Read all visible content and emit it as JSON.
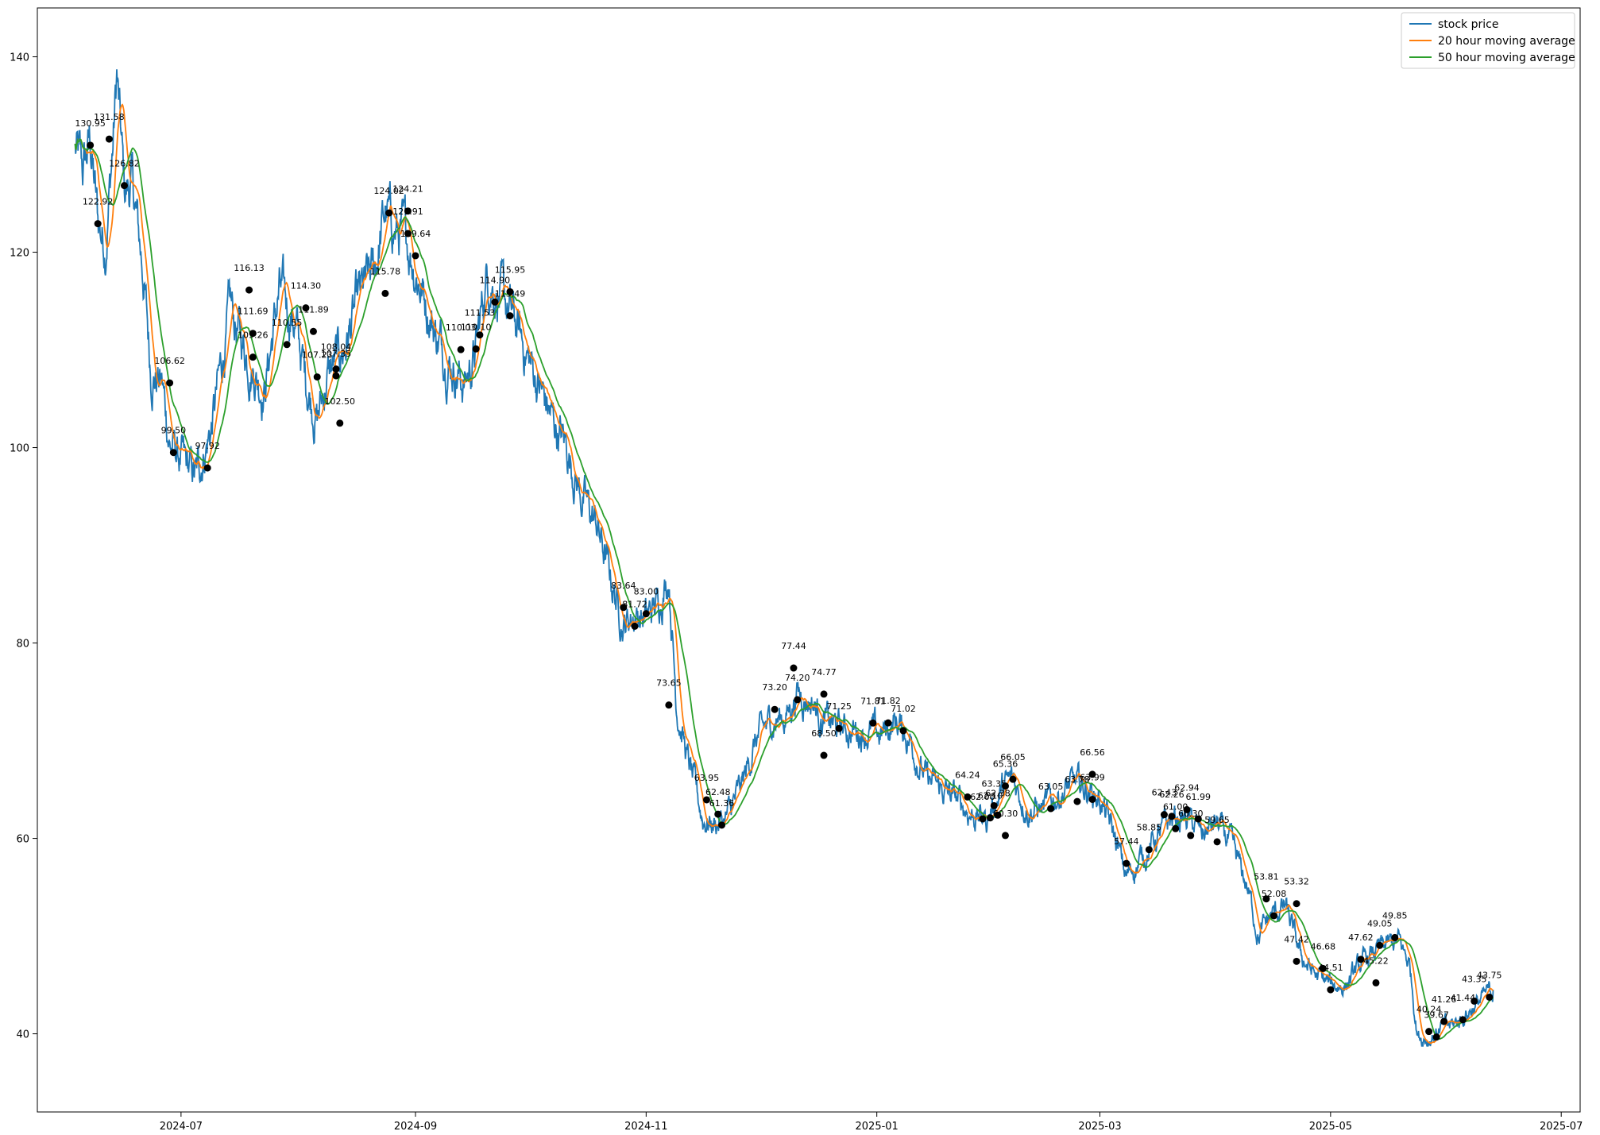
{
  "chart_data": {
    "type": "line",
    "title": "",
    "xlabel": "",
    "ylabel": "",
    "x_ticks": [
      "2024-07",
      "2024-09",
      "2024-11",
      "2025-01",
      "2025-03",
      "2025-05",
      "2025-07"
    ],
    "y_ticks": [
      40,
      60,
      80,
      100,
      120,
      140
    ],
    "xlim": [
      "2024-05-24",
      "2025-07-06"
    ],
    "ylim": [
      32,
      145
    ],
    "grid": false,
    "legend": "top-right",
    "colors": {
      "stock": "#1f77b4",
      "ma20": "#ff7f0e",
      "ma50": "#2ca02c",
      "markers": "#000000"
    },
    "series": [
      {
        "name": "stock price",
        "anchors": [
          [
            "2024-06-03",
            130.5
          ],
          [
            "2024-06-05",
            128.0
          ],
          [
            "2024-06-07",
            131.5
          ],
          [
            "2024-06-09",
            123.0
          ],
          [
            "2024-06-11",
            121.0
          ],
          [
            "2024-06-13",
            131.0
          ],
          [
            "2024-06-14",
            138.0
          ],
          [
            "2024-06-16",
            126.0
          ],
          [
            "2024-06-18",
            127.0
          ],
          [
            "2024-06-21",
            118.0
          ],
          [
            "2024-06-23",
            108.0
          ],
          [
            "2024-06-26",
            106.5
          ],
          [
            "2024-06-28",
            100.5
          ],
          [
            "2024-07-02",
            98.0
          ],
          [
            "2024-07-05",
            97.0
          ],
          [
            "2024-07-09",
            102.0
          ],
          [
            "2024-07-14",
            114.0
          ],
          [
            "2024-07-17",
            111.0
          ],
          [
            "2024-07-19",
            109.0
          ],
          [
            "2024-07-23",
            106.0
          ],
          [
            "2024-07-27",
            116.0
          ],
          [
            "2024-07-31",
            113.0
          ],
          [
            "2024-08-03",
            107.0
          ],
          [
            "2024-08-06",
            103.0
          ],
          [
            "2024-08-09",
            107.5
          ],
          [
            "2024-08-13",
            110.0
          ],
          [
            "2024-08-17",
            115.0
          ],
          [
            "2024-08-21",
            118.0
          ],
          [
            "2024-08-24",
            124.0
          ],
          [
            "2024-08-27",
            122.0
          ],
          [
            "2024-08-30",
            121.0
          ],
          [
            "2024-09-03",
            116.0
          ],
          [
            "2024-09-07",
            111.0
          ],
          [
            "2024-09-10",
            109.0
          ],
          [
            "2024-09-14",
            106.5
          ],
          [
            "2024-09-17",
            110.0
          ],
          [
            "2024-09-20",
            118.0
          ],
          [
            "2024-09-24",
            115.0
          ],
          [
            "2024-09-27",
            113.0
          ],
          [
            "2024-10-02",
            108.0
          ],
          [
            "2024-10-07",
            103.0
          ],
          [
            "2024-10-11",
            100.0
          ],
          [
            "2024-10-15",
            95.0
          ],
          [
            "2024-10-19",
            92.0
          ],
          [
            "2024-10-23",
            86.0
          ],
          [
            "2024-10-26",
            82.0
          ],
          [
            "2024-10-29",
            83.0
          ],
          [
            "2024-11-01",
            82.5
          ],
          [
            "2024-11-04",
            84.0
          ],
          [
            "2024-11-07",
            87.0
          ],
          [
            "2024-11-09",
            74.0
          ],
          [
            "2024-11-12",
            68.0
          ],
          [
            "2024-11-16",
            62.0
          ],
          [
            "2024-11-19",
            61.5
          ],
          [
            "2024-11-22",
            62.0
          ],
          [
            "2024-11-26",
            65.0
          ],
          [
            "2024-11-30",
            70.0
          ],
          [
            "2024-12-04",
            72.0
          ],
          [
            "2024-12-08",
            72.5
          ],
          [
            "2024-12-11",
            75.0
          ],
          [
            "2024-12-15",
            74.0
          ],
          [
            "2024-12-18",
            72.0
          ],
          [
            "2024-12-21",
            71.5
          ],
          [
            "2024-12-25",
            71.0
          ],
          [
            "2024-12-29",
            71.0
          ],
          [
            "2025-01-02",
            70.5
          ],
          [
            "2025-01-06",
            72.0
          ],
          [
            "2025-01-10",
            70.0
          ],
          [
            "2025-01-14",
            66.0
          ],
          [
            "2025-01-18",
            65.0
          ],
          [
            "2025-01-22",
            64.0
          ],
          [
            "2025-01-26",
            62.5
          ],
          [
            "2025-01-30",
            62.0
          ],
          [
            "2025-02-03",
            65.0
          ],
          [
            "2025-02-06",
            66.0
          ],
          [
            "2025-02-10",
            63.0
          ],
          [
            "2025-02-14",
            63.0
          ],
          [
            "2025-02-18",
            64.5
          ],
          [
            "2025-02-22",
            65.5
          ],
          [
            "2025-02-26",
            65.0
          ],
          [
            "2025-03-01",
            64.0
          ],
          [
            "2025-03-05",
            60.0
          ],
          [
            "2025-03-08",
            56.0
          ],
          [
            "2025-03-12",
            58.0
          ],
          [
            "2025-03-16",
            60.0
          ],
          [
            "2025-03-20",
            62.0
          ],
          [
            "2025-03-24",
            62.0
          ],
          [
            "2025-03-28",
            60.5
          ],
          [
            "2025-04-01",
            61.5
          ],
          [
            "2025-04-05",
            59.0
          ],
          [
            "2025-04-09",
            55.0
          ],
          [
            "2025-04-12",
            50.0
          ],
          [
            "2025-04-15",
            52.0
          ],
          [
            "2025-04-19",
            53.0
          ],
          [
            "2025-04-23",
            48.0
          ],
          [
            "2025-04-27",
            46.0
          ],
          [
            "2025-05-01",
            45.0
          ],
          [
            "2025-05-05",
            45.0
          ],
          [
            "2025-05-09",
            47.0
          ],
          [
            "2025-05-13",
            48.5
          ],
          [
            "2025-05-16",
            49.0
          ],
          [
            "2025-05-19",
            49.5
          ],
          [
            "2025-05-22",
            47.0
          ],
          [
            "2025-05-24",
            40.0
          ],
          [
            "2025-05-27",
            39.5
          ],
          [
            "2025-05-30",
            40.5
          ],
          [
            "2025-06-03",
            41.0
          ],
          [
            "2025-06-07",
            42.5
          ],
          [
            "2025-06-10",
            43.5
          ],
          [
            "2025-06-13",
            44.5
          ]
        ]
      },
      {
        "name": "20 hour moving average",
        "window": 3
      },
      {
        "name": "50 hour moving average",
        "window": 7
      }
    ],
    "annotations": [
      {
        "x": "2024-06-07",
        "y": 130.95,
        "label": "130.95"
      },
      {
        "x": "2024-06-09",
        "y": 122.92,
        "label": "122.92"
      },
      {
        "x": "2024-06-12",
        "y": 131.58,
        "label": "131.58"
      },
      {
        "x": "2024-06-16",
        "y": 126.82,
        "label": "126.82"
      },
      {
        "x": "2024-06-28",
        "y": 106.62,
        "label": "106.62"
      },
      {
        "x": "2024-06-29",
        "y": 99.5,
        "label": "99.50"
      },
      {
        "x": "2024-07-08",
        "y": 97.92,
        "label": "97.92"
      },
      {
        "x": "2024-07-19",
        "y": 116.13,
        "label": "116.13"
      },
      {
        "x": "2024-07-20",
        "y": 111.69,
        "label": "111.69"
      },
      {
        "x": "2024-07-20",
        "y": 109.26,
        "label": "109.26"
      },
      {
        "x": "2024-07-29",
        "y": 110.55,
        "label": "110.55"
      },
      {
        "x": "2024-08-03",
        "y": 114.3,
        "label": "114.30"
      },
      {
        "x": "2024-08-05",
        "y": 111.89,
        "label": "111.89"
      },
      {
        "x": "2024-08-06",
        "y": 107.23,
        "label": "107.23"
      },
      {
        "x": "2024-08-11",
        "y": 108.04,
        "label": "108.04"
      },
      {
        "x": "2024-08-11",
        "y": 107.35,
        "label": "107.35"
      },
      {
        "x": "2024-08-12",
        "y": 102.5,
        "label": "102.50"
      },
      {
        "x": "2024-08-24",
        "y": 115.78,
        "label": "115.78"
      },
      {
        "x": "2024-08-25",
        "y": 124.02,
        "label": "124.02"
      },
      {
        "x": "2024-08-30",
        "y": 124.21,
        "label": "124.21"
      },
      {
        "x": "2024-08-30",
        "y": 121.91,
        "label": "121.91"
      },
      {
        "x": "2024-09-01",
        "y": 119.64,
        "label": "119.64"
      },
      {
        "x": "2024-09-13",
        "y": 110.03,
        "label": "110.03"
      },
      {
        "x": "2024-09-17",
        "y": 110.1,
        "label": "110.10"
      },
      {
        "x": "2024-09-18",
        "y": 111.53,
        "label": "111.53"
      },
      {
        "x": "2024-09-22",
        "y": 114.9,
        "label": "114.90"
      },
      {
        "x": "2024-09-26",
        "y": 115.95,
        "label": "115.95"
      },
      {
        "x": "2024-09-26",
        "y": 113.49,
        "label": "113.49"
      },
      {
        "x": "2024-10-26",
        "y": 83.64,
        "label": "83.64"
      },
      {
        "x": "2024-10-29",
        "y": 81.72,
        "label": "81.72"
      },
      {
        "x": "2024-11-01",
        "y": 83.0,
        "label": "83.00"
      },
      {
        "x": "2024-11-07",
        "y": 73.65,
        "label": "73.65"
      },
      {
        "x": "2024-11-17",
        "y": 63.95,
        "label": "63.95"
      },
      {
        "x": "2024-11-20",
        "y": 62.48,
        "label": "62.48"
      },
      {
        "x": "2024-11-21",
        "y": 61.36,
        "label": "61.36"
      },
      {
        "x": "2024-12-05",
        "y": 73.2,
        "label": "73.20"
      },
      {
        "x": "2024-12-10",
        "y": 77.44,
        "label": "77.44"
      },
      {
        "x": "2024-12-11",
        "y": 74.2,
        "label": "74.20"
      },
      {
        "x": "2024-12-18",
        "y": 74.77,
        "label": "74.77"
      },
      {
        "x": "2024-12-18",
        "y": 68.5,
        "label": "68.50"
      },
      {
        "x": "2024-12-22",
        "y": 71.25,
        "label": "71.25"
      },
      {
        "x": "2024-12-31",
        "y": 71.81,
        "label": "71.81"
      },
      {
        "x": "2025-01-04",
        "y": 71.82,
        "label": "71.82"
      },
      {
        "x": "2025-01-08",
        "y": 71.02,
        "label": "71.02"
      },
      {
        "x": "2025-01-25",
        "y": 64.24,
        "label": "64.24"
      },
      {
        "x": "2025-01-29",
        "y": 62.0,
        "label": "62.00"
      },
      {
        "x": "2025-01-31",
        "y": 62.1,
        "label": "62.10"
      },
      {
        "x": "2025-02-01",
        "y": 63.35,
        "label": "63.35"
      },
      {
        "x": "2025-02-02",
        "y": 62.38,
        "label": "62.38"
      },
      {
        "x": "2025-02-04",
        "y": 60.3,
        "label": "60.30"
      },
      {
        "x": "2025-02-04",
        "y": 65.36,
        "label": "65.36"
      },
      {
        "x": "2025-02-06",
        "y": 66.05,
        "label": "66.05"
      },
      {
        "x": "2025-02-16",
        "y": 63.05,
        "label": "63.05"
      },
      {
        "x": "2025-02-23",
        "y": 63.78,
        "label": "63.78"
      },
      {
        "x": "2025-02-27",
        "y": 66.56,
        "label": "66.56"
      },
      {
        "x": "2025-02-27",
        "y": 63.99,
        "label": "63.99"
      },
      {
        "x": "2025-03-08",
        "y": 57.44,
        "label": "57.44"
      },
      {
        "x": "2025-03-14",
        "y": 58.85,
        "label": "58.85"
      },
      {
        "x": "2025-03-18",
        "y": 62.43,
        "label": "62.43"
      },
      {
        "x": "2025-03-20",
        "y": 62.26,
        "label": "62.26"
      },
      {
        "x": "2025-03-21",
        "y": 61.0,
        "label": "61.00"
      },
      {
        "x": "2025-03-24",
        "y": 62.94,
        "label": "62.94"
      },
      {
        "x": "2025-03-25",
        "y": 60.3,
        "label": "60.30"
      },
      {
        "x": "2025-03-27",
        "y": 61.99,
        "label": "61.99"
      },
      {
        "x": "2025-04-01",
        "y": 59.65,
        "label": "59.65"
      },
      {
        "x": "2025-04-14",
        "y": 53.81,
        "label": "53.81"
      },
      {
        "x": "2025-04-16",
        "y": 52.08,
        "label": "52.08"
      },
      {
        "x": "2025-04-22",
        "y": 53.32,
        "label": "53.32"
      },
      {
        "x": "2025-04-22",
        "y": 47.42,
        "label": "47.42"
      },
      {
        "x": "2025-04-29",
        "y": 46.68,
        "label": "46.68"
      },
      {
        "x": "2025-05-01",
        "y": 44.51,
        "label": "44.51"
      },
      {
        "x": "2025-05-09",
        "y": 47.62,
        "label": "47.62"
      },
      {
        "x": "2025-05-13",
        "y": 45.22,
        "label": "45.22"
      },
      {
        "x": "2025-05-14",
        "y": 49.05,
        "label": "49.05"
      },
      {
        "x": "2025-05-18",
        "y": 49.85,
        "label": "49.85"
      },
      {
        "x": "2025-05-27",
        "y": 40.24,
        "label": "40.24"
      },
      {
        "x": "2025-05-29",
        "y": 39.67,
        "label": "39.67"
      },
      {
        "x": "2025-05-31",
        "y": 41.26,
        "label": "41.26"
      },
      {
        "x": "2025-06-05",
        "y": 41.44,
        "label": "41.44"
      },
      {
        "x": "2025-06-08",
        "y": 43.35,
        "label": "43.35"
      },
      {
        "x": "2025-06-12",
        "y": 43.75,
        "label": "43.75"
      }
    ]
  }
}
